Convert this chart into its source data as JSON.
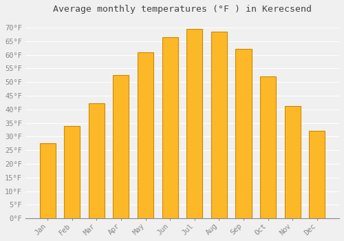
{
  "title": "Average monthly temperatures (°F ) in Kerecsend",
  "months": [
    "Jan",
    "Feb",
    "Mar",
    "Apr",
    "May",
    "Jun",
    "Jul",
    "Aug",
    "Sep",
    "Oct",
    "Nov",
    "Dec"
  ],
  "values": [
    27.5,
    33.8,
    42.3,
    52.5,
    61.0,
    66.5,
    69.5,
    68.5,
    62.2,
    52.0,
    41.2,
    32.0
  ],
  "bar_color": "#FDB827",
  "bar_edge_color": "#CC8800",
  "ylim": [
    0,
    73
  ],
  "yticks": [
    0,
    5,
    10,
    15,
    20,
    25,
    30,
    35,
    40,
    45,
    50,
    55,
    60,
    65,
    70
  ],
  "ytick_labels": [
    "0°F",
    "5°F",
    "10°F",
    "15°F",
    "20°F",
    "25°F",
    "30°F",
    "35°F",
    "40°F",
    "45°F",
    "50°F",
    "55°F",
    "60°F",
    "65°F",
    "70°F"
  ],
  "background_color": "#f0f0f0",
  "plot_bg_color": "#f0f0f0",
  "grid_color": "#ffffff",
  "title_fontsize": 9.5,
  "tick_fontsize": 7.5,
  "font_family": "monospace",
  "tick_color": "#888888",
  "title_color": "#444444"
}
